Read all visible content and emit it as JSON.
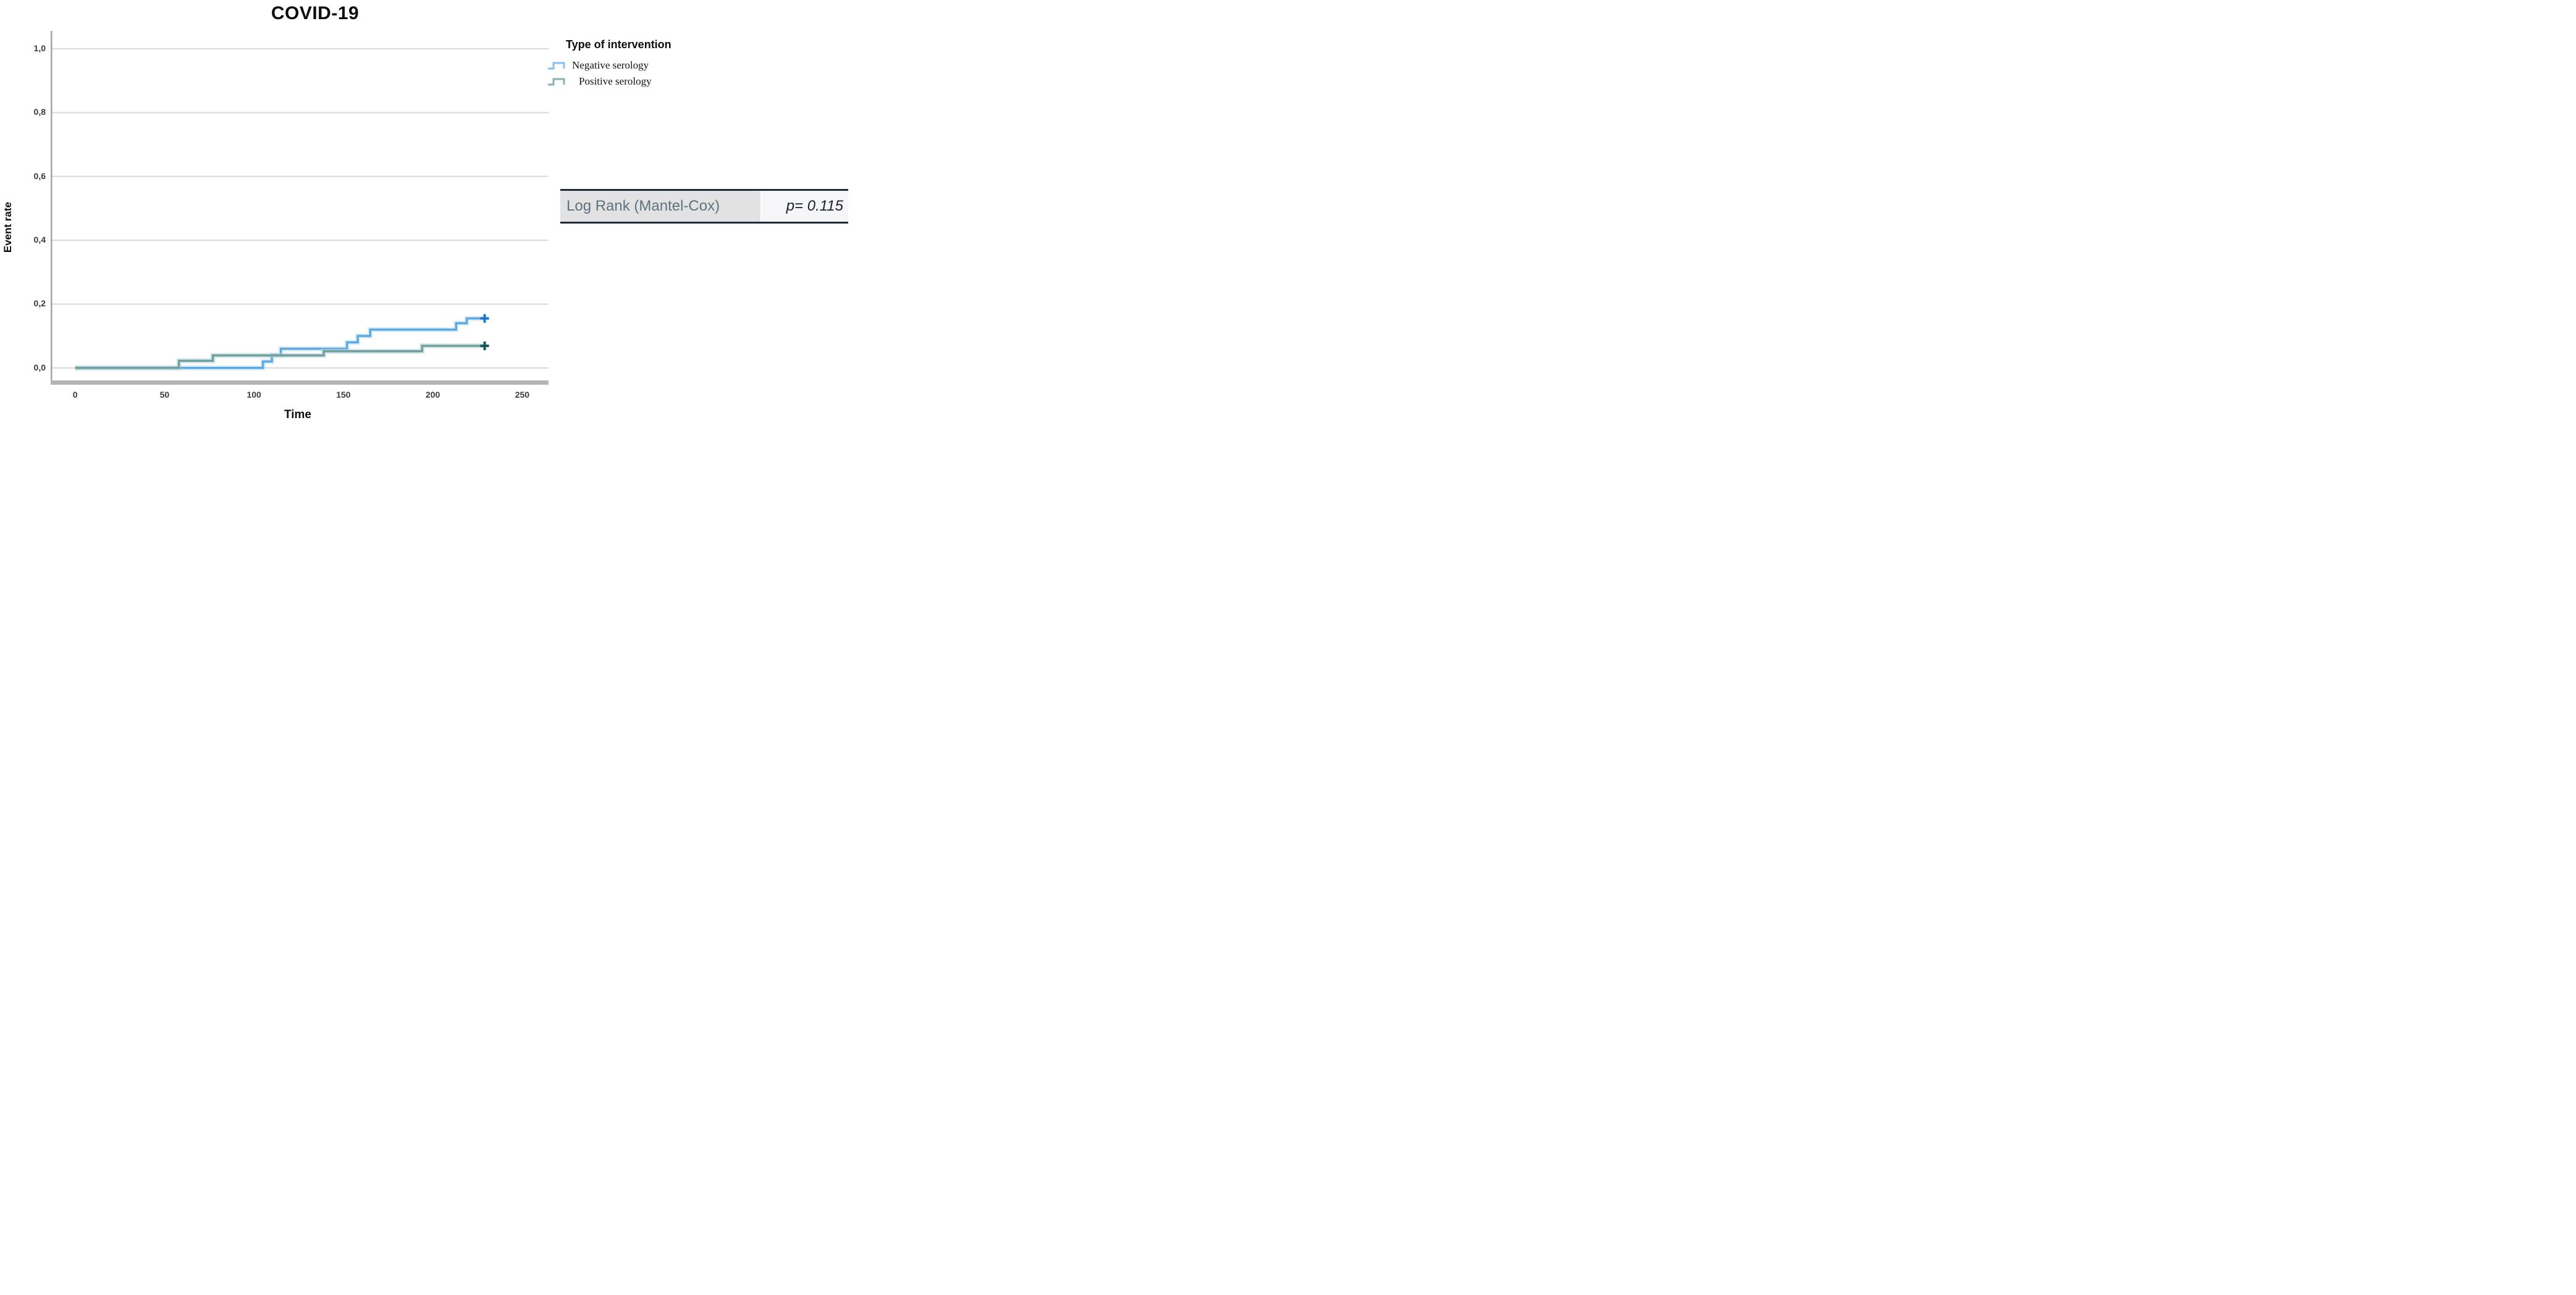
{
  "title": "COVID-19",
  "axes": {
    "x": {
      "label": "Time",
      "ticks": [
        "0",
        "50",
        "100",
        "150",
        "200",
        "250"
      ]
    },
    "y": {
      "label": "Event rate",
      "ticks": [
        "1,0",
        "0,8",
        "0,6",
        "0,4",
        "0,2",
        "0,0"
      ]
    }
  },
  "legend": {
    "title": "Type of intervention",
    "items": [
      {
        "label": "Negative serology",
        "glyph_color": "#8fc4e8",
        "indent": 0
      },
      {
        "label": "Positive serology",
        "glyph_color": "#8fb4b5",
        "indent": 11
      }
    ]
  },
  "stats_table": {
    "label": "Log Rank (Mantel-Cox)",
    "value": "p= 0.115"
  },
  "colors": {
    "gridline": "#d9d9d9",
    "y_axis": "#a3a3a3",
    "x_axis_bar": "#b5b5b5",
    "negative_line": "#5ca9df",
    "negative_halo": "#badcf3",
    "negative_marker": "#1877c9",
    "positive_line": "#6fa0a1",
    "positive_halo": "#b7cfcf",
    "positive_marker": "#14575a",
    "table_border": "#1d2c3b",
    "table_label_bg": "#e2e2e2",
    "table_value_bg": "#f6f6f8"
  },
  "chart_data": {
    "type": "line",
    "subtype": "kaplan-meier-step",
    "title": "COVID-19",
    "xlabel": "Time",
    "ylabel": "Event rate",
    "xlim": [
      0,
      264
    ],
    "ylim": [
      0,
      1.0
    ],
    "xticks": [
      0,
      50,
      100,
      150,
      200,
      250
    ],
    "ytick_values": [
      1.0,
      0.8,
      0.6,
      0.4,
      0.2,
      0.0
    ],
    "ytick_labels": [
      "1,0",
      "0,8",
      "0,6",
      "0,4",
      "0,2",
      "0,0"
    ],
    "grid": "horizontal",
    "legend_position": "top-right",
    "series": [
      {
        "name": "Negative serology",
        "color": "#5ca9df",
        "halo": "#badcf3",
        "marker_color": "#1877c9",
        "points": [
          [
            0,
            0
          ],
          [
            105,
            0.02
          ],
          [
            110,
            0.04
          ],
          [
            115,
            0.06
          ],
          [
            152,
            0.08
          ],
          [
            158,
            0.1
          ],
          [
            165,
            0.12
          ],
          [
            213,
            0.14
          ],
          [
            219,
            0.155
          ],
          [
            229,
            0.155
          ]
        ],
        "censored": [
          [
            229,
            0.155
          ]
        ]
      },
      {
        "name": "Positive serology",
        "color": "#6fa0a1",
        "halo": "#b7cfcf",
        "marker_color": "#14575a",
        "points": [
          [
            0,
            0
          ],
          [
            58,
            0.022
          ],
          [
            77,
            0.039
          ],
          [
            139,
            0.052
          ],
          [
            194,
            0.069
          ],
          [
            229,
            0.069
          ]
        ],
        "censored": [
          [
            229,
            0.069
          ]
        ]
      }
    ],
    "annotations": [
      {
        "text": "Log Rank (Mantel-Cox)",
        "value": "p= 0.115"
      }
    ]
  }
}
